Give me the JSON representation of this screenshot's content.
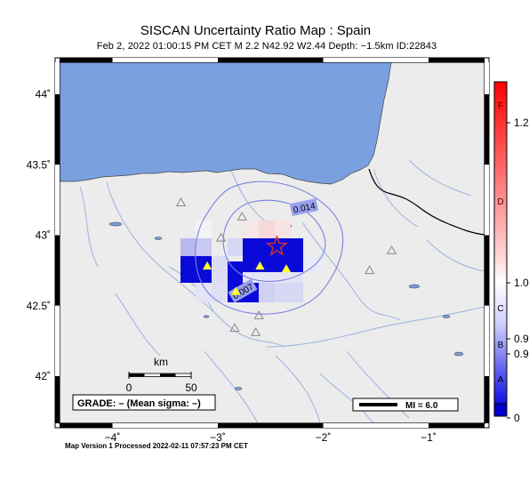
{
  "title": "SISCAN Uncertainty Ratio Map : Spain",
  "subtitle": "Feb  2, 2022 01:00:15 PM CET   M 2.2   N42.92 W2.44   Depth: −1.5km   ID:22843",
  "footer": "Map Version 1 Processed 2022-02-11 07:57:23 PM CET",
  "axes": {
    "x_ticks": [
      {
        "lon": -4,
        "label": "−4˚"
      },
      {
        "lon": -3,
        "label": "−3˚"
      },
      {
        "lon": -2,
        "label": "−2˚"
      },
      {
        "lon": -1,
        "label": "−1˚"
      }
    ],
    "y_ticks": [
      {
        "lat": 44.0,
        "label": "44˚"
      },
      {
        "lat": 43.5,
        "label": "43.5˚"
      },
      {
        "lat": 43.0,
        "label": "43˚"
      },
      {
        "lat": 42.5,
        "label": "42.5˚"
      },
      {
        "lat": 42.0,
        "label": "42˚"
      }
    ],
    "lon_range": [
      -4.5,
      -0.45
    ],
    "lat_range": [
      41.7,
      44.25
    ]
  },
  "contours": [
    {
      "label": "0.014",
      "color": "#7a80e0"
    },
    {
      "label": "0.007",
      "color": "#7a80e0"
    }
  ],
  "epicenter": {
    "lon": -2.44,
    "lat": 42.92,
    "icon": "star-icon",
    "color": "#e03020"
  },
  "stations_yellow": [
    {
      "lon": -3.1,
      "lat": 42.78
    },
    {
      "lon": -2.6,
      "lat": 42.78
    },
    {
      "lon": -2.35,
      "lat": 42.76
    },
    {
      "lon": -2.83,
      "lat": 42.6
    }
  ],
  "stations_gray": [
    {
      "lon": -3.35,
      "lat": 43.23
    },
    {
      "lon": -2.77,
      "lat": 43.13
    },
    {
      "lon": -2.97,
      "lat": 42.98
    },
    {
      "lon": -1.35,
      "lat": 42.89
    },
    {
      "lon": -1.56,
      "lat": 42.75
    },
    {
      "lon": -2.61,
      "lat": 42.43
    },
    {
      "lon": -2.84,
      "lat": 42.34
    },
    {
      "lon": -2.64,
      "lat": 42.31
    }
  ],
  "scale_bar": {
    "unit": "km",
    "labels": [
      "0",
      "50"
    ]
  },
  "grade_box": {
    "text": "GRADE: – (Mean sigma: –)"
  },
  "mi_legend": {
    "text": "MI = 6.0"
  },
  "color_scale": {
    "letters": [
      "F",
      "D",
      "C",
      "B",
      "A"
    ],
    "values": [
      "1.2",
      "1.0",
      "0.9",
      "0.9",
      "0"
    ],
    "colors": {
      "top": "#ff0000",
      "mid": "#ffffff",
      "bottom": "#0000cc"
    }
  },
  "colors": {
    "sea": "#7aa0e0",
    "land": "#ececec",
    "river": "#9ab2e0",
    "border": "#000000"
  }
}
